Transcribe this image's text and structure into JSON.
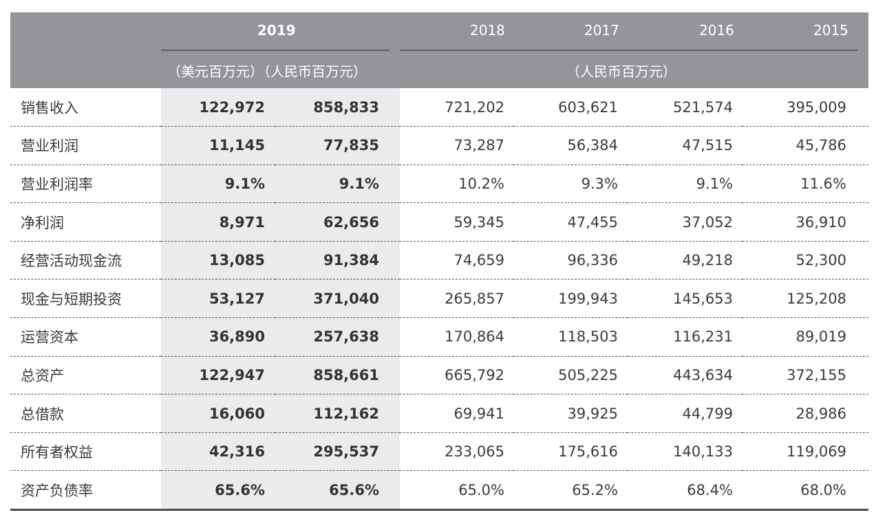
{
  "header": {
    "years": [
      "2019",
      "2018",
      "2017",
      "2016",
      "2015"
    ],
    "unit_2019": "（美元百万元）（人民币百万元）",
    "unit_others": "（人民币百万元）"
  },
  "rows": [
    {
      "label": "销售收入",
      "values": [
        "122,972",
        "858,833",
        "721,202",
        "603,621",
        "521,574",
        "395,009"
      ]
    },
    {
      "label": "营业利润",
      "values": [
        "11,145",
        "77,835",
        "73,287",
        "56,384",
        "47,515",
        "45,786"
      ]
    },
    {
      "label": "营业利润率",
      "values": [
        "9.1%",
        "9.1%",
        "10.2%",
        "9.3%",
        "9.1%",
        "11.6%"
      ]
    },
    {
      "label": "净利润",
      "values": [
        "8,971",
        "62,656",
        "59,345",
        "47,455",
        "37,052",
        "36,910"
      ]
    },
    {
      "label": "经营活动现金流",
      "values": [
        "13,085",
        "91,384",
        "74,659",
        "96,336",
        "49,218",
        "52,300"
      ]
    },
    {
      "label": "现金与短期投资",
      "values": [
        "53,127",
        "371,040",
        "265,857",
        "199,943",
        "145,653",
        "125,208"
      ]
    },
    {
      "label": "运营资本",
      "values": [
        "36,890",
        "257,638",
        "170,864",
        "118,503",
        "116,231",
        "89,019"
      ]
    },
    {
      "label": "总资产",
      "values": [
        "122,947",
        "858,661",
        "665,792",
        "505,225",
        "443,634",
        "372,155"
      ]
    },
    {
      "label": "总借款",
      "values": [
        "16,060",
        "112,162",
        "69,941",
        "39,925",
        "44,799",
        "28,986"
      ]
    },
    {
      "label": "所有者权益",
      "values": [
        "42,316",
        "295,537",
        "233,065",
        "175,616",
        "140,133",
        "119,069"
      ]
    },
    {
      "label": "资产负债率",
      "values": [
        "65.6%",
        "65.6%",
        "65.0%",
        "65.2%",
        "68.4%",
        "68.0%"
      ]
    }
  ]
}
